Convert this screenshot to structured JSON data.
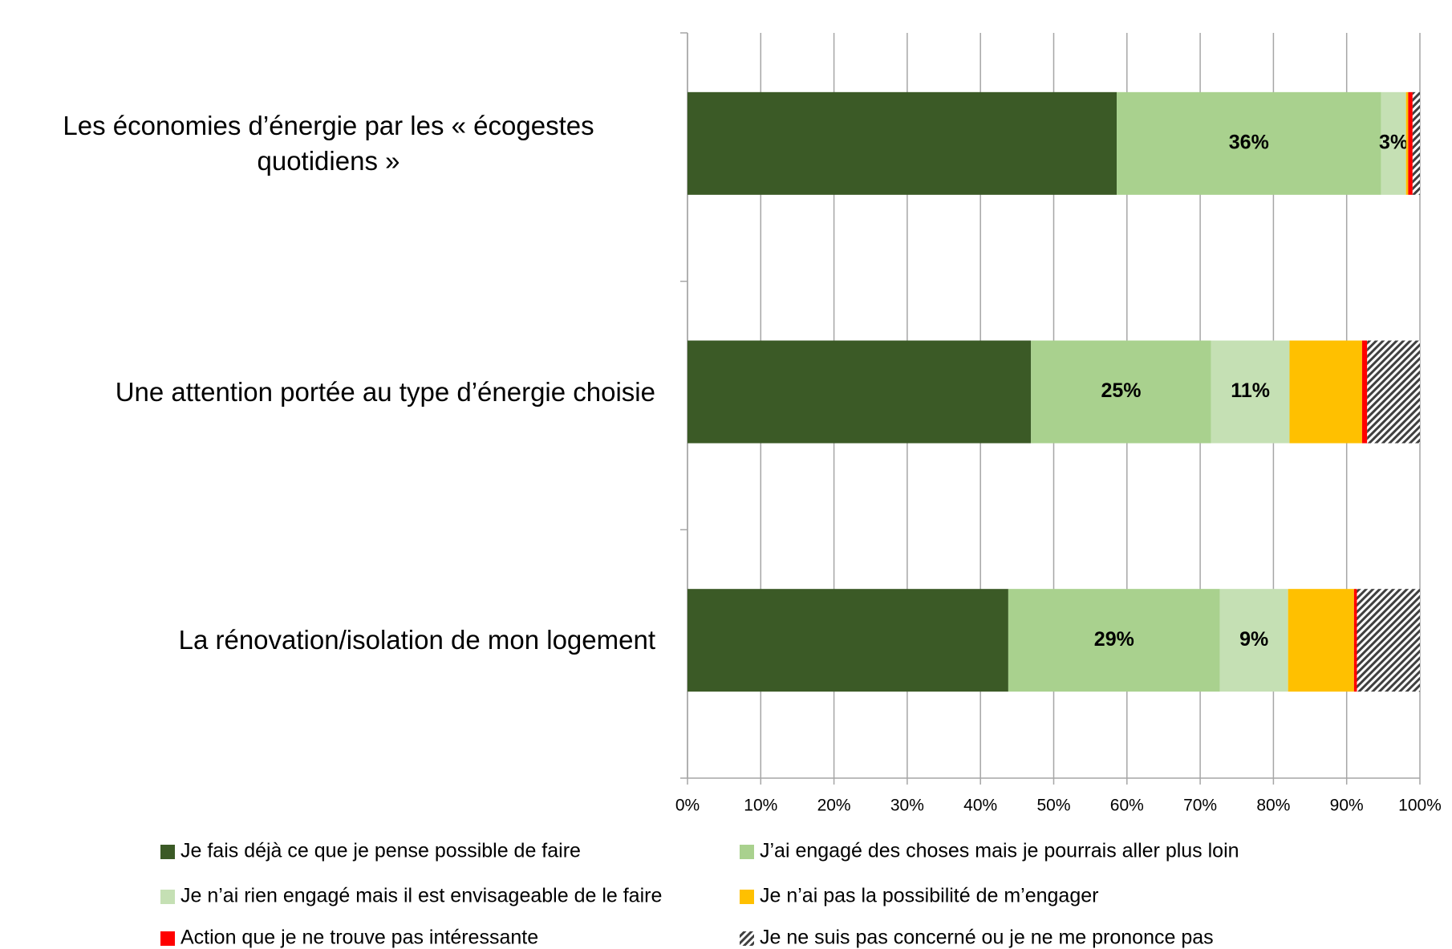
{
  "chart_data": {
    "type": "bar",
    "orientation": "horizontal",
    "stacked": true,
    "categories": [
      "Les économies d’énergie par les « écogestes quotidiens »",
      "Une attention portée au type d’énergie choisie",
      "La rénovation/isolation de mon logement"
    ],
    "series": [
      {
        "name": "Je fais déjà ce que je pense possible de faire",
        "color": "#3b5a26",
        "values": [
          58.6,
          46.9,
          43.8
        ]
      },
      {
        "name": "J’ai engagé des choses mais je pourrais aller plus loin",
        "color": "#a9d18e",
        "values": [
          36.1,
          24.6,
          28.9
        ],
        "value_labels": [
          "36%",
          "25%",
          "29%"
        ]
      },
      {
        "name": "Je n’ai rien engagé mais il est envisageable de le faire",
        "color": "#c5e0b4",
        "values": [
          3.4,
          10.7,
          9.3
        ],
        "value_labels": [
          "3%",
          "11%",
          "9%"
        ]
      },
      {
        "name": "Je n’ai pas la possibilité de m’engager",
        "color": "#ffc000",
        "values": [
          0.3,
          9.9,
          9.0
        ]
      },
      {
        "name": "Action que je ne trouve pas intéressante",
        "color": "#ff0000",
        "values": [
          0.6,
          0.7,
          0.4
        ]
      },
      {
        "name": "Je ne suis pas concerné ou je ne me prononce pas",
        "color": "#404040",
        "pattern": "hatch",
        "values": [
          1.0,
          7.2,
          8.6
        ]
      }
    ],
    "xlim": [
      0,
      100
    ],
    "xticks": [
      {
        "value": 0,
        "label": "0%"
      },
      {
        "value": 10,
        "label": "10%"
      },
      {
        "value": 20,
        "label": "20%"
      },
      {
        "value": 30,
        "label": "30%"
      },
      {
        "value": 40,
        "label": "40%"
      },
      {
        "value": 50,
        "label": "50%"
      },
      {
        "value": 60,
        "label": "60%"
      },
      {
        "value": 70,
        "label": "70%"
      },
      {
        "value": 80,
        "label": "80%"
      },
      {
        "value": 90,
        "label": "90%"
      },
      {
        "value": 100,
        "label": "100%"
      }
    ],
    "grid": true,
    "legend": "bottom"
  }
}
